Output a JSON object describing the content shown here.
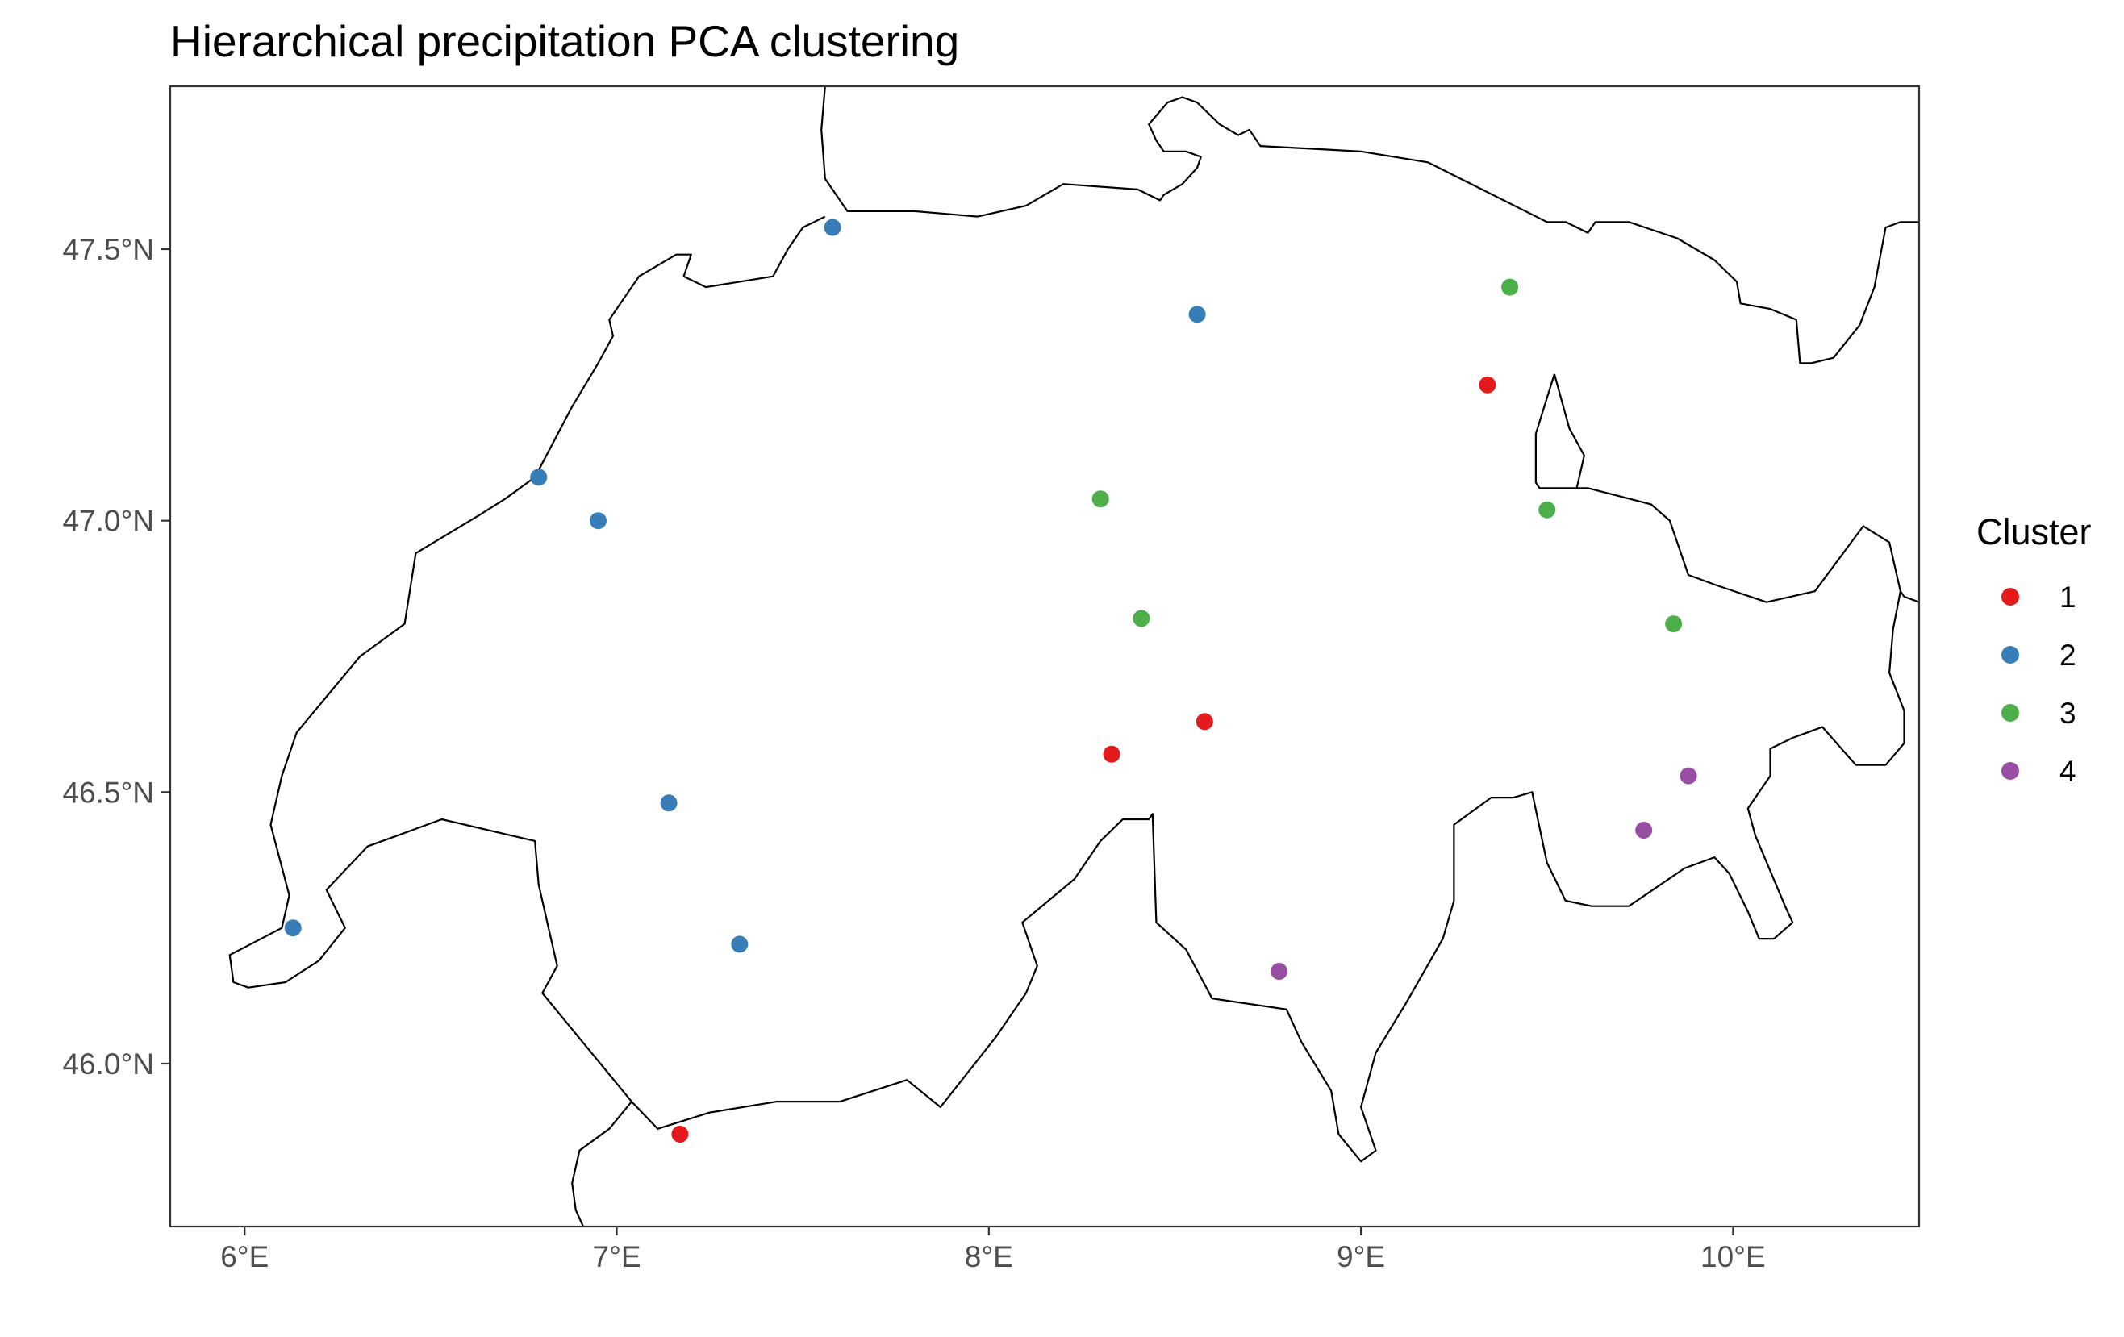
{
  "chart_data": {
    "type": "scatter",
    "title": "Hierarchical precipitation PCA clustering",
    "xlabel": "",
    "ylabel": "",
    "xlim": [
      5.8,
      10.5
    ],
    "ylim": [
      45.7,
      47.8
    ],
    "grid": false,
    "legend": {
      "title": "Cluster",
      "position": "right",
      "entries": [
        {
          "label": "1",
          "color": "#e41a1c"
        },
        {
          "label": "2",
          "color": "#377eb8"
        },
        {
          "label": "3",
          "color": "#4daf4a"
        },
        {
          "label": "4",
          "color": "#984ea3"
        }
      ]
    },
    "x_ticks": [
      {
        "value": 6,
        "label": "6°E"
      },
      {
        "value": 7,
        "label": "7°E"
      },
      {
        "value": 8,
        "label": "8°E"
      },
      {
        "value": 9,
        "label": "9°E"
      },
      {
        "value": 10,
        "label": "10°E"
      }
    ],
    "y_ticks": [
      {
        "value": 46.0,
        "label": "46.0°N"
      },
      {
        "value": 46.5,
        "label": "46.5°N"
      },
      {
        "value": 47.0,
        "label": "47.0°N"
      },
      {
        "value": 47.5,
        "label": "47.5°N"
      }
    ],
    "points": [
      {
        "lon": 7.58,
        "lat": 47.54,
        "cluster": "2"
      },
      {
        "lon": 8.56,
        "lat": 47.38,
        "cluster": "2"
      },
      {
        "lon": 6.79,
        "lat": 47.08,
        "cluster": "2"
      },
      {
        "lon": 6.95,
        "lat": 47.0,
        "cluster": "2"
      },
      {
        "lon": 7.14,
        "lat": 46.48,
        "cluster": "2"
      },
      {
        "lon": 6.13,
        "lat": 46.25,
        "cluster": "2"
      },
      {
        "lon": 7.33,
        "lat": 46.22,
        "cluster": "2"
      },
      {
        "lon": 9.34,
        "lat": 47.25,
        "cluster": "1"
      },
      {
        "lon": 8.58,
        "lat": 46.63,
        "cluster": "1"
      },
      {
        "lon": 8.33,
        "lat": 46.57,
        "cluster": "1"
      },
      {
        "lon": 7.17,
        "lat": 45.87,
        "cluster": "1"
      },
      {
        "lon": 9.4,
        "lat": 47.43,
        "cluster": "3"
      },
      {
        "lon": 8.3,
        "lat": 47.04,
        "cluster": "3"
      },
      {
        "lon": 9.5,
        "lat": 47.02,
        "cluster": "3"
      },
      {
        "lon": 8.41,
        "lat": 46.82,
        "cluster": "3"
      },
      {
        "lon": 9.84,
        "lat": 46.81,
        "cluster": "3"
      },
      {
        "lon": 9.88,
        "lat": 46.53,
        "cluster": "4"
      },
      {
        "lon": 9.76,
        "lat": 46.43,
        "cluster": "4"
      },
      {
        "lon": 8.78,
        "lat": 46.17,
        "cluster": "4"
      }
    ],
    "border": [
      [
        7.56,
        47.8
      ],
      [
        7.55,
        47.72
      ],
      [
        7.56,
        47.63
      ],
      [
        7.62,
        47.57
      ],
      [
        7.8,
        47.57
      ],
      [
        7.97,
        47.56
      ],
      [
        8.1,
        47.58
      ],
      [
        8.2,
        47.62
      ],
      [
        8.4,
        47.61
      ],
      [
        8.46,
        47.59
      ],
      [
        8.47,
        47.6
      ],
      [
        8.52,
        47.62
      ],
      [
        8.56,
        47.65
      ],
      [
        8.57,
        47.67
      ],
      [
        8.53,
        47.68
      ],
      [
        8.47,
        47.68
      ],
      [
        8.45,
        47.7
      ],
      [
        8.43,
        47.73
      ],
      [
        8.48,
        47.77
      ],
      [
        8.52,
        47.78
      ],
      [
        8.56,
        47.77
      ],
      [
        8.62,
        47.73
      ],
      [
        8.67,
        47.71
      ],
      [
        8.7,
        47.72
      ],
      [
        8.73,
        47.69
      ],
      [
        9.0,
        47.68
      ],
      [
        9.18,
        47.66
      ],
      [
        9.5,
        47.55
      ],
      [
        9.55,
        47.55
      ],
      [
        9.61,
        47.53
      ],
      [
        9.63,
        47.55
      ],
      [
        9.72,
        47.55
      ],
      [
        9.85,
        47.52
      ],
      [
        9.95,
        47.48
      ],
      [
        10.01,
        47.44
      ],
      [
        10.02,
        47.4
      ],
      [
        10.1,
        47.39
      ],
      [
        10.17,
        47.37
      ],
      [
        10.18,
        47.29
      ],
      [
        10.21,
        47.29
      ],
      [
        10.27,
        47.3
      ],
      [
        10.34,
        47.36
      ],
      [
        10.38,
        47.43
      ],
      [
        10.41,
        47.54
      ],
      [
        10.45,
        47.55
      ],
      [
        10.5,
        47.55
      ]
    ],
    "border_2": [
      [
        9.52,
        47.27
      ],
      [
        9.47,
        47.16
      ],
      [
        9.47,
        47.07
      ],
      [
        9.48,
        47.06
      ],
      [
        9.61,
        47.06
      ],
      [
        9.78,
        47.03
      ],
      [
        9.83,
        47.0
      ],
      [
        9.88,
        46.9
      ],
      [
        9.96,
        46.88
      ],
      [
        10.09,
        46.85
      ],
      [
        10.22,
        46.87
      ],
      [
        10.35,
        46.99
      ],
      [
        10.42,
        46.96
      ],
      [
        10.45,
        46.87
      ],
      [
        10.43,
        46.8
      ],
      [
        10.42,
        46.72
      ],
      [
        10.46,
        46.65
      ],
      [
        10.46,
        46.59
      ],
      [
        10.41,
        46.55
      ],
      [
        10.33,
        46.55
      ],
      [
        10.24,
        46.62
      ],
      [
        10.2,
        46.61
      ],
      [
        10.16,
        46.6
      ],
      [
        10.1,
        46.58
      ],
      [
        10.1,
        46.53
      ],
      [
        10.04,
        46.47
      ],
      [
        10.06,
        46.42
      ],
      [
        10.14,
        46.29
      ],
      [
        10.16,
        46.26
      ],
      [
        10.11,
        46.23
      ],
      [
        10.07,
        46.23
      ],
      [
        10.04,
        46.28
      ],
      [
        9.99,
        46.35
      ],
      [
        9.95,
        46.38
      ],
      [
        9.87,
        46.36
      ],
      [
        9.72,
        46.29
      ],
      [
        9.62,
        46.29
      ],
      [
        9.55,
        46.3
      ],
      [
        9.5,
        46.37
      ],
      [
        9.46,
        46.5
      ],
      [
        9.41,
        46.49
      ],
      [
        9.35,
        46.49
      ],
      [
        9.25,
        46.44
      ],
      [
        9.25,
        46.3
      ],
      [
        9.22,
        46.23
      ],
      [
        9.12,
        46.11
      ],
      [
        9.04,
        46.02
      ],
      [
        9.0,
        45.92
      ],
      [
        9.04,
        45.84
      ],
      [
        9.0,
        45.82
      ],
      [
        8.94,
        45.87
      ],
      [
        8.92,
        45.95
      ],
      [
        8.84,
        46.04
      ],
      [
        8.8,
        46.1
      ],
      [
        8.6,
        46.12
      ],
      [
        8.53,
        46.21
      ],
      [
        8.45,
        46.26
      ],
      [
        8.44,
        46.46
      ],
      [
        8.43,
        46.45
      ],
      [
        8.36,
        46.45
      ],
      [
        8.3,
        46.41
      ],
      [
        8.23,
        46.34
      ],
      [
        8.09,
        46.26
      ],
      [
        8.13,
        46.18
      ],
      [
        8.1,
        46.13
      ],
      [
        8.02,
        46.05
      ],
      [
        7.87,
        45.92
      ],
      [
        7.78,
        45.97
      ],
      [
        7.6,
        45.93
      ],
      [
        7.43,
        45.93
      ],
      [
        7.25,
        45.91
      ],
      [
        7.11,
        45.88
      ],
      [
        7.04,
        45.93
      ],
      [
        6.8,
        46.13
      ],
      [
        6.84,
        46.18
      ],
      [
        6.79,
        46.33
      ],
      [
        6.78,
        46.41
      ],
      [
        6.53,
        46.45
      ],
      [
        6.33,
        46.4
      ],
      [
        6.22,
        46.32
      ],
      [
        6.27,
        46.25
      ],
      [
        6.2,
        46.19
      ],
      [
        6.11,
        46.15
      ],
      [
        6.01,
        46.14
      ],
      [
        5.97,
        46.15
      ],
      [
        5.96,
        46.2
      ],
      [
        6.1,
        46.25
      ],
      [
        6.12,
        46.31
      ],
      [
        6.07,
        46.44
      ],
      [
        6.1,
        46.53
      ],
      [
        6.14,
        46.61
      ],
      [
        6.31,
        46.75
      ],
      [
        6.43,
        46.81
      ],
      [
        6.46,
        46.94
      ],
      [
        6.63,
        47.01
      ],
      [
        6.7,
        47.04
      ],
      [
        6.78,
        47.08
      ],
      [
        6.88,
        47.21
      ],
      [
        6.95,
        47.29
      ],
      [
        6.99,
        47.34
      ],
      [
        6.98,
        47.37
      ],
      [
        7.01,
        47.4
      ],
      [
        7.06,
        47.45
      ],
      [
        7.16,
        47.49
      ],
      [
        7.2,
        47.49
      ],
      [
        7.18,
        47.45
      ],
      [
        7.24,
        47.43
      ],
      [
        7.33,
        47.44
      ],
      [
        7.42,
        47.45
      ],
      [
        7.46,
        47.5
      ],
      [
        7.5,
        47.54
      ],
      [
        7.56,
        47.56
      ]
    ],
    "border_3": [
      [
        9.52,
        47.27
      ],
      [
        9.56,
        47.17
      ],
      [
        9.6,
        47.12
      ],
      [
        9.58,
        47.06
      ]
    ],
    "border_4": [
      [
        10.5,
        46.85
      ],
      [
        10.46,
        46.86
      ],
      [
        10.45,
        46.87
      ]
    ],
    "border_5": [
      [
        7.04,
        45.93
      ],
      [
        6.98,
        45.88
      ],
      [
        6.9,
        45.84
      ],
      [
        6.88,
        45.78
      ],
      [
        6.89,
        45.73
      ],
      [
        6.91,
        45.7
      ]
    ]
  }
}
